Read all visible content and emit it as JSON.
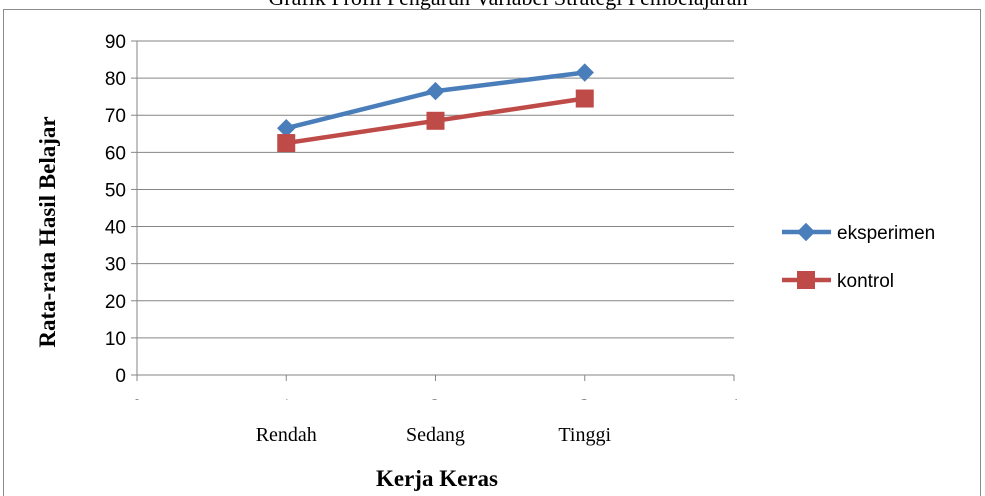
{
  "chart_data": {
    "type": "line",
    "title": "Grafik Profil Pengaruh Variabel Strategi Pembelajaran",
    "xlabel": "Kerja Keras",
    "ylabel": "Rata-rata Hasil Belajar",
    "xlim": [
      0,
      4
    ],
    "ylim": [
      0,
      90
    ],
    "x_ticks": [
      0,
      1,
      2,
      3,
      4
    ],
    "y_ticks": [
      0,
      10,
      20,
      30,
      40,
      50,
      60,
      70,
      80,
      90
    ],
    "category_labels": [
      {
        "x": 1,
        "label": "Rendah"
      },
      {
        "x": 2,
        "label": "Sedang"
      },
      {
        "x": 3,
        "label": "Tinggi"
      }
    ],
    "grid": "horizontal",
    "legend_position": "right",
    "series": [
      {
        "name": "eksperimen",
        "x": [
          1,
          2,
          3
        ],
        "values": [
          66.5,
          76.5,
          81.5
        ],
        "color": "#4a7ebb",
        "marker": "diamond"
      },
      {
        "name": "kontrol",
        "x": [
          1,
          2,
          3
        ],
        "values": [
          62.5,
          68.5,
          74.5
        ],
        "color": "#be4b48",
        "marker": "square"
      }
    ]
  }
}
